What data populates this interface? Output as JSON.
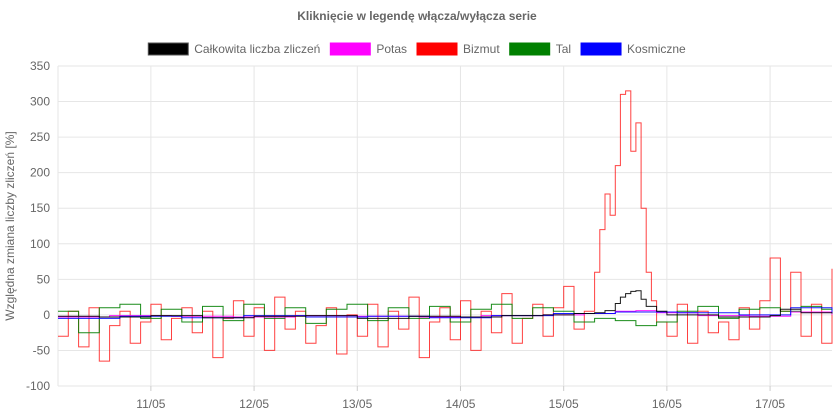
{
  "chart_data": {
    "type": "line",
    "step": true,
    "title": "Kliknięcie w legendę włącza/wyłącza serie",
    "xlabel": "",
    "ylabel": "Względna zmiana liczby zliczeń [%]",
    "ylim": [
      -100,
      350
    ],
    "y_ticks": [
      -100,
      -50,
      0,
      50,
      100,
      150,
      200,
      250,
      300,
      350
    ],
    "x_ticks": [
      "11/05",
      "12/05",
      "13/05",
      "14/05",
      "15/05",
      "16/05",
      "17/05"
    ],
    "x_tick_values": [
      1,
      2,
      3,
      4,
      5,
      6,
      7
    ],
    "xlim": [
      0.1,
      7.6
    ],
    "grid": true,
    "legend_position": "top",
    "series": [
      {
        "name": "Całkowita liczba zliczeń",
        "color": "#000000",
        "x": [
          0.1,
          0.5,
          1.0,
          1.5,
          2.0,
          2.5,
          3.0,
          3.5,
          4.0,
          4.4,
          4.8,
          5.1,
          5.3,
          5.4,
          5.5,
          5.55,
          5.6,
          5.65,
          5.7,
          5.75,
          5.8,
          5.9,
          6.0,
          6.5,
          7.0,
          7.1,
          7.3,
          7.6
        ],
        "y": [
          -2,
          -3,
          -1,
          -4,
          -2,
          -1,
          -5,
          -2,
          -3,
          -1,
          0,
          2,
          3,
          6,
          16,
          25,
          30,
          33,
          34,
          22,
          12,
          5,
          0,
          -3,
          -1,
          8,
          3,
          2
        ]
      },
      {
        "name": "Potas",
        "color": "#ff00ff",
        "x": [
          0.1,
          0.6,
          1.2,
          1.8,
          2.4,
          3.0,
          3.6,
          4.2,
          4.8,
          5.2,
          5.5,
          5.7,
          5.9,
          6.3,
          6.8,
          7.2,
          7.6
        ],
        "y": [
          -3,
          -1,
          -2,
          -3,
          -1,
          -2,
          -3,
          -1,
          0,
          2,
          5,
          6,
          3,
          -1,
          -2,
          4,
          0
        ]
      },
      {
        "name": "Bizmut",
        "color": "#ff0000",
        "x": [
          0.1,
          0.2,
          0.3,
          0.4,
          0.5,
          0.6,
          0.7,
          0.8,
          0.9,
          1.0,
          1.1,
          1.2,
          1.3,
          1.4,
          1.5,
          1.6,
          1.7,
          1.8,
          1.9,
          2.0,
          2.1,
          2.2,
          2.3,
          2.4,
          2.5,
          2.6,
          2.7,
          2.8,
          2.9,
          3.0,
          3.1,
          3.2,
          3.3,
          3.4,
          3.5,
          3.6,
          3.7,
          3.8,
          3.9,
          4.0,
          4.1,
          4.2,
          4.3,
          4.4,
          4.5,
          4.6,
          4.7,
          4.8,
          4.9,
          5.0,
          5.1,
          5.2,
          5.3,
          5.35,
          5.4,
          5.45,
          5.5,
          5.55,
          5.6,
          5.65,
          5.7,
          5.75,
          5.8,
          5.85,
          5.9,
          6.0,
          6.1,
          6.2,
          6.3,
          6.4,
          6.5,
          6.6,
          6.7,
          6.8,
          6.9,
          7.0,
          7.1,
          7.2,
          7.3,
          7.4,
          7.5,
          7.6
        ],
        "y": [
          -30,
          5,
          -45,
          10,
          -65,
          -15,
          5,
          -40,
          -10,
          15,
          -35,
          -5,
          10,
          -25,
          5,
          -60,
          -5,
          20,
          -30,
          10,
          -50,
          25,
          -20,
          5,
          -40,
          -15,
          10,
          -55,
          0,
          -30,
          15,
          -45,
          5,
          -20,
          25,
          -60,
          -10,
          10,
          -35,
          20,
          -50,
          5,
          -25,
          30,
          -40,
          -5,
          15,
          -30,
          10,
          40,
          -20,
          5,
          60,
          120,
          170,
          140,
          210,
          310,
          315,
          230,
          270,
          150,
          60,
          20,
          -10,
          -30,
          15,
          -40,
          5,
          -25,
          -10,
          -35,
          10,
          -20,
          20,
          80,
          5,
          60,
          -30,
          15,
          -40,
          65
        ]
      },
      {
        "name": "Tal",
        "color": "#008000",
        "x": [
          0.1,
          0.3,
          0.5,
          0.7,
          0.9,
          1.1,
          1.3,
          1.5,
          1.7,
          1.9,
          2.1,
          2.3,
          2.5,
          2.7,
          2.9,
          3.1,
          3.3,
          3.5,
          3.7,
          3.9,
          4.1,
          4.3,
          4.5,
          4.7,
          4.9,
          5.1,
          5.3,
          5.5,
          5.7,
          5.9,
          6.1,
          6.3,
          6.5,
          6.7,
          6.9,
          7.1,
          7.3,
          7.5,
          7.6
        ],
        "y": [
          5,
          -25,
          10,
          15,
          -5,
          8,
          -10,
          12,
          -8,
          15,
          -5,
          10,
          -12,
          8,
          15,
          -8,
          10,
          -5,
          12,
          -10,
          8,
          15,
          -5,
          10,
          5,
          -10,
          -5,
          -8,
          -15,
          -10,
          5,
          12,
          -5,
          8,
          10,
          5,
          12,
          8,
          5
        ]
      },
      {
        "name": "Kosmiczne",
        "color": "#0000ff",
        "x": [
          0.1,
          0.7,
          1.3,
          1.9,
          2.5,
          3.1,
          3.7,
          4.3,
          4.9,
          5.5,
          6.1,
          6.7,
          7.2,
          7.6
        ],
        "y": [
          -5,
          -2,
          -4,
          -1,
          -3,
          -2,
          -4,
          -1,
          2,
          4,
          3,
          0,
          10,
          2
        ]
      }
    ]
  }
}
